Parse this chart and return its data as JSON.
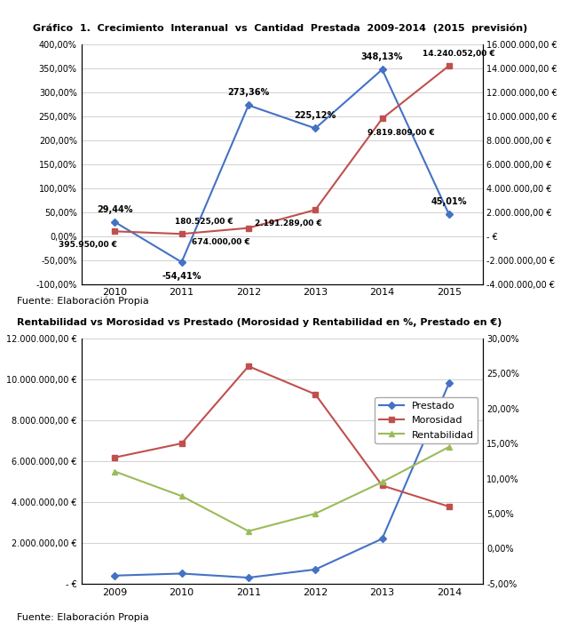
{
  "chart1": {
    "title": "Gráfico  1.  Crecimiento  Interanual  vs  Cantidad  Prestada  2009-2014  (2015  previsión)",
    "x_labels": [
      "2010",
      "2011",
      "2012",
      "2013",
      "2014",
      "2015"
    ],
    "blue_line": [
      29.44,
      -54.41,
      273.36,
      225.12,
      348.13,
      45.01
    ],
    "red_line_values": [
      395950,
      180525,
      674000,
      2191289,
      9819809,
      14240052
    ],
    "blue_annotations": [
      "29,44%",
      "-54,41%",
      "273,36%",
      "225,12%",
      "348,13%",
      "45,01%"
    ],
    "red_annotations": [
      "395.950,00 €",
      "180.525,00 €",
      "674.000,00 €",
      "2.191.289,00 €",
      "9.819.809,00 €",
      "14.240.052,00 €"
    ],
    "left_ylim": [
      -100,
      400
    ],
    "right_ylim": [
      -4000000,
      16000000
    ],
    "left_yticks": [
      -100,
      -50,
      0,
      50,
      100,
      150,
      200,
      250,
      300,
      350,
      400
    ],
    "right_yticks": [
      -4000000,
      -2000000,
      0,
      2000000,
      4000000,
      6000000,
      8000000,
      10000000,
      12000000,
      14000000,
      16000000
    ],
    "blue_color": "#4472C4",
    "red_color": "#C0504D",
    "source": "Fuente: Elaboración Propia"
  },
  "chart2": {
    "title": "Rentabilidad vs Morosidad vs Prestado (Morosidad y Rentabilidad en %, Prestado en €)",
    "x_labels": [
      "2009",
      "2010",
      "2011",
      "2012",
      "2013",
      "2014"
    ],
    "prestado": [
      400000,
      500000,
      300000,
      700000,
      2200000,
      9800000
    ],
    "morosidad": [
      13.0,
      15.0,
      26.0,
      22.0,
      9.0,
      6.0
    ],
    "rentabilidad": [
      11.0,
      7.5,
      2.5,
      5.0,
      9.5,
      14.5
    ],
    "left_ylim": [
      0,
      12000000
    ],
    "right_ylim": [
      -5,
      30
    ],
    "left_yticks": [
      0,
      2000000,
      4000000,
      6000000,
      8000000,
      10000000,
      12000000
    ],
    "right_yticks": [
      -5,
      0,
      5,
      10,
      15,
      20,
      25,
      30
    ],
    "blue_color": "#4472C4",
    "red_color": "#C0504D",
    "green_color": "#9BBB59",
    "legend_labels": [
      "Prestado",
      "Morosidad",
      "Rentabilidad"
    ],
    "source": "Fuente: Elaboración Propia"
  }
}
